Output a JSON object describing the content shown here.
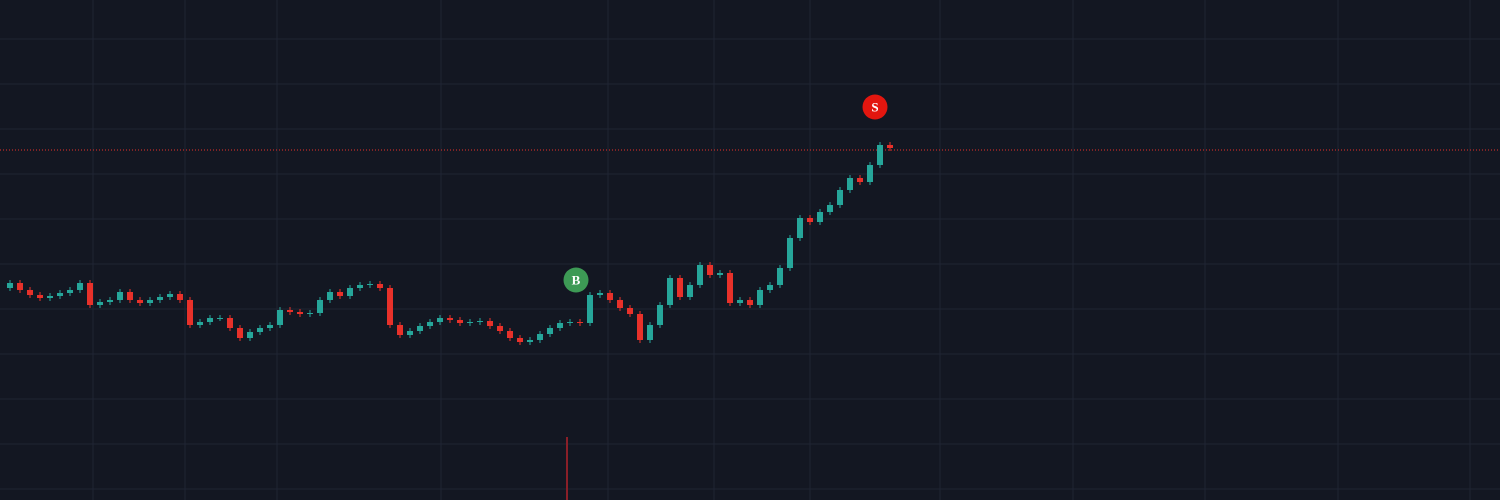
{
  "chart_data": {
    "type": "candlestick",
    "background": "#131722",
    "grid": true,
    "grid_color": "#1f2433",
    "up_color": "#26a69a",
    "down_color": "#e8312a",
    "xlim": [
      0,
      150
    ],
    "ylim": [
      0,
      500
    ],
    "xticks": [
      9.3,
      18.5,
      27.7,
      44.1,
      60.8,
      71.4,
      81,
      94,
      107.3,
      120.5,
      133.8,
      147
    ],
    "yticks": [
      461,
      416,
      371,
      326,
      281,
      236,
      191,
      146,
      101,
      56,
      11
    ],
    "x": [
      1,
      2,
      3,
      4,
      5,
      6,
      7,
      8,
      9,
      10,
      11,
      12,
      13,
      14,
      15,
      16,
      17,
      18,
      19,
      20,
      21,
      22,
      23,
      24,
      25,
      26,
      27,
      28,
      29,
      30,
      31,
      32,
      33,
      34,
      35,
      36,
      37,
      38,
      39,
      40,
      41,
      42,
      43,
      44,
      45,
      46,
      47,
      48,
      49,
      50,
      51,
      52,
      53,
      54,
      55,
      56,
      57,
      58,
      59,
      60,
      61,
      62,
      63,
      64,
      65,
      66,
      67,
      68,
      69,
      70,
      71,
      72,
      73,
      74,
      75,
      76,
      77,
      78,
      79,
      80,
      81,
      82,
      83,
      84,
      85,
      86,
      87,
      88,
      89
    ],
    "open": [
      212,
      217,
      210,
      205,
      202,
      204,
      207,
      210,
      217,
      195,
      198,
      200,
      208,
      200,
      197,
      200,
      203,
      206,
      200,
      175,
      178,
      182,
      182,
      172,
      162,
      168,
      172,
      175,
      190,
      188,
      186,
      187,
      200,
      208,
      204,
      212,
      215,
      216,
      212,
      175,
      165,
      169,
      174,
      178,
      182,
      180,
      177,
      178,
      179,
      174,
      169,
      162,
      158,
      160,
      166,
      172,
      177,
      178,
      177,
      205,
      207,
      200,
      192,
      186,
      160,
      175,
      195,
      222,
      203,
      215,
      235,
      225,
      227,
      197,
      200,
      195,
      210,
      215,
      232,
      262,
      282,
      278,
      288,
      295,
      310,
      322,
      318,
      335,
      355
    ],
    "high": [
      220,
      220,
      213,
      208,
      207,
      210,
      213,
      220,
      220,
      201,
      203,
      211,
      211,
      203,
      203,
      206,
      209,
      209,
      203,
      181,
      185,
      185,
      185,
      175,
      171,
      175,
      178,
      193,
      193,
      191,
      190,
      203,
      211,
      211,
      215,
      218,
      219,
      219,
      215,
      178,
      172,
      177,
      181,
      185,
      185,
      183,
      181,
      182,
      182,
      177,
      172,
      165,
      163,
      169,
      175,
      180,
      181,
      181,
      208,
      210,
      210,
      203,
      195,
      189,
      178,
      198,
      225,
      225,
      218,
      238,
      238,
      230,
      230,
      203,
      203,
      213,
      218,
      235,
      265,
      285,
      285,
      291,
      298,
      313,
      325,
      325,
      338,
      358,
      358
    ],
    "low": [
      209,
      207,
      202,
      199,
      199,
      201,
      204,
      207,
      192,
      192,
      195,
      197,
      197,
      194,
      194,
      197,
      200,
      197,
      172,
      172,
      175,
      179,
      169,
      159,
      159,
      165,
      169,
      172,
      185,
      183,
      183,
      184,
      197,
      201,
      201,
      209,
      212,
      209,
      172,
      162,
      162,
      166,
      171,
      175,
      177,
      174,
      174,
      175,
      171,
      166,
      159,
      155,
      155,
      157,
      163,
      169,
      174,
      174,
      174,
      202,
      197,
      189,
      183,
      157,
      157,
      172,
      192,
      200,
      200,
      212,
      222,
      222,
      194,
      194,
      192,
      192,
      207,
      212,
      229,
      259,
      275,
      275,
      285,
      292,
      307,
      315,
      315,
      332,
      349
    ],
    "close": [
      217,
      210,
      205,
      202,
      204,
      207,
      210,
      217,
      195,
      198,
      200,
      208,
      200,
      197,
      200,
      203,
      206,
      200,
      175,
      178,
      182,
      182,
      172,
      162,
      168,
      172,
      175,
      190,
      188,
      186,
      187,
      200,
      208,
      204,
      212,
      215,
      216,
      212,
      175,
      165,
      169,
      174,
      178,
      182,
      180,
      177,
      178,
      179,
      174,
      169,
      162,
      158,
      160,
      166,
      172,
      177,
      178,
      177,
      205,
      207,
      200,
      192,
      186,
      160,
      175,
      195,
      222,
      203,
      215,
      235,
      225,
      227,
      197,
      200,
      195,
      210,
      215,
      232,
      262,
      282,
      278,
      288,
      295,
      310,
      322,
      318,
      335,
      355,
      352
    ],
    "price_line": {
      "value": 350,
      "color": "#e8312a"
    },
    "volume_bar": {
      "x": 56.7,
      "value": 63,
      "color": "#8a1f28"
    },
    "markers": [
      {
        "label": "B",
        "x": 57.6,
        "value": 220,
        "color": "#3d9a55"
      },
      {
        "label": "S",
        "x": 87.5,
        "value": 393,
        "color": "#e3160f"
      }
    ]
  }
}
